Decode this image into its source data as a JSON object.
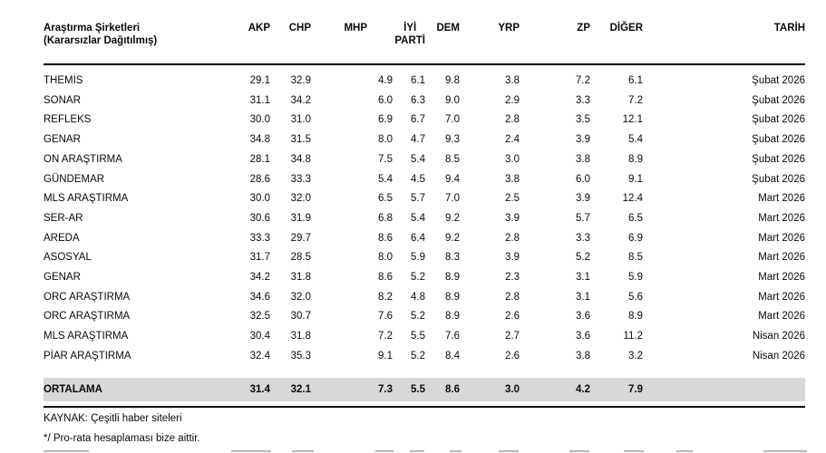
{
  "table": {
    "header": {
      "company_label_line1": "Araştırma Şirketleri",
      "company_label_line2": "(Kararsızlar Dağıtılmış)",
      "columns": [
        "AKP",
        "CHP",
        "MHP",
        "İYİ PARTİ",
        "DEM",
        "YRP",
        "ZP",
        "DİĞER",
        "TARİH"
      ],
      "iyi_parti_line1": "İYİ",
      "iyi_parti_line2": "PARTİ"
    },
    "rows": [
      {
        "company": "THEMİS",
        "values": [
          "29.1",
          "32.9",
          "4.9",
          "6.1",
          "9.8",
          "3.8",
          "7.2",
          "6.1"
        ],
        "date": "Şubat 2026"
      },
      {
        "company": "SONAR",
        "values": [
          "31.1",
          "34.2",
          "6.0",
          "6.3",
          "9.0",
          "2.9",
          "3.3",
          "7.2"
        ],
        "date": "Şubat 2026"
      },
      {
        "company": "REFLEKS",
        "values": [
          "30.0",
          "31.0",
          "6.9",
          "6.7",
          "7.0",
          "2.8",
          "3.5",
          "12.1"
        ],
        "date": "Şubat 2026"
      },
      {
        "company": "GENAR",
        "values": [
          "34.8",
          "31.5",
          "8.0",
          "4.7",
          "9.3",
          "2.4",
          "3.9",
          "5.4"
        ],
        "date": "Şubat 2026"
      },
      {
        "company": "ON ARAŞTIRMA",
        "values": [
          "28.1",
          "34.8",
          "7.5",
          "5.4",
          "8.5",
          "3.0",
          "3.8",
          "8.9"
        ],
        "date": "Şubat 2026"
      },
      {
        "company": "GÜNDEMAR",
        "values": [
          "28.6",
          "33.3",
          "5.4",
          "4.5",
          "9.4",
          "3.8",
          "6.0",
          "9.1"
        ],
        "date": "Şubat 2026"
      },
      {
        "company": "MLS ARAŞTIRMA",
        "values": [
          "30.0",
          "32.0",
          "6.5",
          "5.7",
          "7.0",
          "2.5",
          "3.9",
          "12.4"
        ],
        "date": "Mart 2026"
      },
      {
        "company": "SER-AR",
        "values": [
          "30.6",
          "31.9",
          "6.8",
          "5.4",
          "9.2",
          "3.9",
          "5.7",
          "6.5"
        ],
        "date": "Mart 2026"
      },
      {
        "company": "AREDA",
        "values": [
          "33.3",
          "29.7",
          "8.6",
          "6.4",
          "9.2",
          "2.8",
          "3.3",
          "6.9"
        ],
        "date": "Mart 2026"
      },
      {
        "company": "ASOSYAL",
        "values": [
          "31.7",
          "28.5",
          "8.0",
          "5.9",
          "8.3",
          "3.9",
          "5.2",
          "8.5"
        ],
        "date": "Mart 2026"
      },
      {
        "company": "GENAR",
        "values": [
          "34.2",
          "31.8",
          "8.6",
          "5.2",
          "8.9",
          "2.3",
          "3.1",
          "5.9"
        ],
        "date": "Mart 2026"
      },
      {
        "company": "ORC ARAŞTIRMA",
        "values": [
          "34.6",
          "32.0",
          "8.2",
          "4.8",
          "8.9",
          "2.8",
          "3.1",
          "5.6"
        ],
        "date": "Mart 2026"
      },
      {
        "company": "ORC ARAŞTIRMA",
        "values": [
          "32.5",
          "30.7",
          "7.6",
          "5.2",
          "8.9",
          "2.6",
          "3.6",
          "8.9"
        ],
        "date": "Mart 2026"
      },
      {
        "company": "MLS ARAŞTIRMA",
        "values": [
          "30.4",
          "31.8",
          "7.2",
          "5.5",
          "7.6",
          "2.7",
          "3.6",
          "11.2"
        ],
        "date": "Nisan 2026"
      },
      {
        "company": "PİAR ARAŞTIRMA",
        "values": [
          "32.4",
          "35.3",
          "9.1",
          "5.2",
          "8.4",
          "2.6",
          "3.8",
          "3.2"
        ],
        "date": "Nisan 2026"
      }
    ],
    "average": {
      "label": "ORTALAMA",
      "values": [
        "31.4",
        "32.1",
        "7.3",
        "5.5",
        "8.6",
        "3.0",
        "4.2",
        "7.9"
      ],
      "date": ""
    }
  },
  "footer": {
    "source": "KAYNAK: Çeşitli haber siteleri",
    "note": "*/ Pro-rata hesaplaması bize aittir."
  },
  "colors": {
    "average_row_bg": "#d8d8d8",
    "rule": "#000000",
    "text": "#0a0a0a"
  }
}
